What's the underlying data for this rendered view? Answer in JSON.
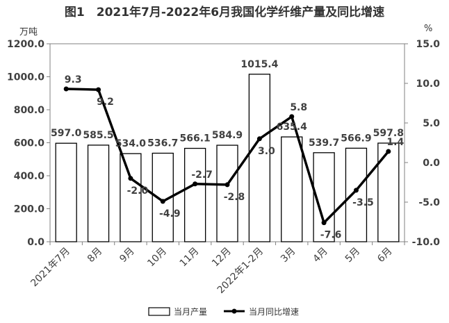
{
  "chart_data": {
    "type": "bar",
    "title": "图1　2021年7月-2022年6月我国化学纤维产量及同比增速",
    "left_unit": "万吨",
    "right_unit": "%",
    "categories": [
      "2021年7月",
      "8月",
      "9月",
      "10月",
      "11月",
      "12月",
      "2022年1-2月",
      "3月",
      "4月",
      "5月",
      "6月"
    ],
    "y_left_ticks": [
      "0.0",
      "200.0",
      "400.0",
      "600.0",
      "800.0",
      "1000.0",
      "1200.0"
    ],
    "y_right_ticks": [
      "-10.0",
      "-5.0",
      "0.0",
      "5.0",
      "10.0",
      "15.0"
    ],
    "y_left_range": [
      0,
      1200
    ],
    "y_right_range": [
      -10,
      15
    ],
    "series": [
      {
        "name": "当月产量",
        "type": "bar",
        "axis": "left",
        "values": [
          597.0,
          585.5,
          534.0,
          536.7,
          566.1,
          584.9,
          1015.4,
          635.4,
          539.7,
          566.9,
          597.8
        ],
        "labels": [
          "597.0",
          "585.5",
          "534.0",
          "536.7",
          "566.1",
          "584.9",
          "1015.4",
          "635.4",
          "539.7",
          "566.9",
          "597.8"
        ]
      },
      {
        "name": "当月同比增速",
        "type": "line",
        "axis": "right",
        "values": [
          9.3,
          9.2,
          -2.0,
          -4.9,
          -2.7,
          -2.8,
          3.0,
          5.8,
          -7.6,
          -3.5,
          1.4
        ],
        "labels": [
          "9.3",
          "9.2",
          "-2.0",
          "-4.9",
          "-2.7",
          "-2.8",
          "3.0",
          "5.8",
          "-7.6",
          "-3.5",
          "1.4"
        ]
      }
    ],
    "legend_position": "bottom",
    "grid": false,
    "colors": {
      "bar_fill": "#ffffff",
      "bar_stroke": "#000000",
      "line": "#000000",
      "text": "#404040"
    }
  }
}
